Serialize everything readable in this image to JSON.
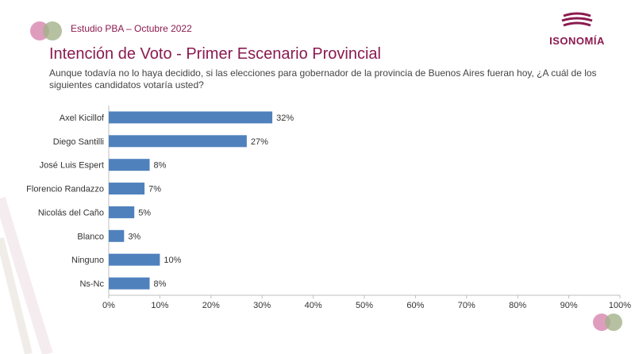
{
  "header": {
    "study_label": "Estudio PBA – Octubre 2022"
  },
  "brand": {
    "name": "ISONOMÍA",
    "color": "#8b1a4f"
  },
  "slide": {
    "title": "Intención de Voto - Primer Escenario Provincial",
    "question": "Aunque todavía no lo haya decidido, si las elecciones para gobernador de la provincia de Buenos Aires fueran hoy, ¿A cuál de los siguientes candidatos votaría usted?"
  },
  "colors": {
    "bar": "#4f81bd",
    "accent": "#8b1a4f",
    "dot_pink": "#d98cb3",
    "dot_green": "#a3b18a"
  },
  "chart_data": {
    "type": "bar",
    "orientation": "horizontal",
    "categories": [
      "Axel Kicillof",
      "Diego Santilli",
      "José Luis Espert",
      "Florencio Randazzo",
      "Nicolás del Caño",
      "Blanco",
      "Ninguno",
      "Ns-Nc"
    ],
    "values": [
      32,
      27,
      8,
      7,
      5,
      3,
      10,
      8
    ],
    "value_labels": [
      "32%",
      "27%",
      "8%",
      "7%",
      "5%",
      "3%",
      "10%",
      "8%"
    ],
    "xlim": [
      0,
      100
    ],
    "xticks": [
      0,
      10,
      20,
      30,
      40,
      50,
      60,
      70,
      80,
      90,
      100
    ],
    "xtick_labels": [
      "0%",
      "10%",
      "20%",
      "30%",
      "40%",
      "50%",
      "60%",
      "70%",
      "80%",
      "90%",
      "100%"
    ],
    "grid": false,
    "legend": "none"
  }
}
